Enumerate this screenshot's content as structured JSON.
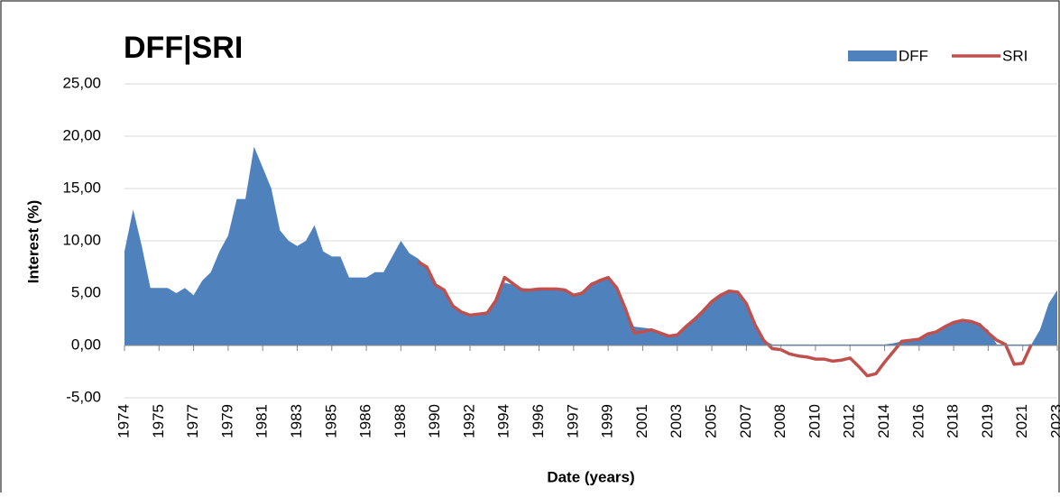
{
  "chart_data": {
    "type": "area-line",
    "title": "DFF|SRI",
    "x_label": "Date (years)",
    "y_label": "Interest (%)",
    "categories": [
      "1974",
      null,
      null,
      null,
      "1975",
      null,
      null,
      null,
      "1977",
      null,
      null,
      null,
      "1979",
      null,
      null,
      null,
      "1981",
      null,
      null,
      null,
      "1983",
      null,
      null,
      null,
      "1985",
      null,
      null,
      null,
      "1986",
      null,
      null,
      null,
      "1988",
      null,
      null,
      null,
      "1990",
      null,
      null,
      null,
      "1992",
      null,
      null,
      null,
      "1994",
      null,
      null,
      null,
      "1996",
      null,
      null,
      null,
      "1997",
      null,
      null,
      null,
      "1999",
      null,
      null,
      null,
      "2001",
      null,
      null,
      null,
      "2003",
      null,
      null,
      null,
      "2005",
      null,
      null,
      null,
      "2007",
      null,
      null,
      null,
      "2008",
      null,
      null,
      null,
      "2010",
      null,
      null,
      null,
      "2012",
      null,
      null,
      null,
      "2014",
      null,
      null,
      null,
      "2016",
      null,
      null,
      null,
      "2018",
      null,
      null,
      null,
      "2019",
      null,
      null,
      null,
      "2021",
      null,
      null,
      null,
      "2023"
    ],
    "series": [
      {
        "name": "DFF",
        "kind": "area",
        "color": "#4f81bd",
        "values": [
          9,
          13,
          9.5,
          5.5,
          5.5,
          5.5,
          5,
          5.5,
          4.8,
          6.2,
          7,
          9,
          10.5,
          14,
          14,
          19,
          17,
          15,
          11,
          10,
          9.5,
          10,
          11.5,
          9,
          8.5,
          8.5,
          6.5,
          6.5,
          6.5,
          7,
          7,
          8.5,
          10,
          8.8,
          8.3,
          7.5,
          6,
          5.2,
          4,
          3.2,
          3,
          3.1,
          3.2,
          4.5,
          6,
          5.8,
          5.5,
          5.4,
          5.5,
          5.5,
          5.5,
          5.3,
          4.8,
          5.2,
          6,
          6.3,
          6.5,
          5.5,
          3.5,
          1.8,
          1.7,
          1.6,
          1.2,
          1,
          1.1,
          1.8,
          2.5,
          3.3,
          4.2,
          4.8,
          5.2,
          5.2,
          4,
          2,
          0.5,
          0.1,
          0.1,
          0.1,
          0.1,
          0.1,
          0.1,
          0.1,
          0.1,
          0.1,
          0.1,
          0.1,
          0.1,
          0.1,
          0.1,
          0.2,
          0.4,
          0.4,
          0.7,
          1.1,
          1.4,
          1.8,
          2.2,
          2.4,
          2.3,
          2,
          1.5,
          0.1,
          0.1,
          0.1,
          0.1,
          0.1,
          1.5,
          4,
          5.3
        ]
      },
      {
        "name": "SRI",
        "kind": "line",
        "color": "#c0504d",
        "values": [
          null,
          null,
          null,
          null,
          null,
          null,
          null,
          null,
          null,
          null,
          null,
          null,
          null,
          null,
          null,
          null,
          null,
          null,
          null,
          null,
          null,
          null,
          null,
          null,
          null,
          null,
          null,
          null,
          null,
          null,
          null,
          null,
          null,
          null,
          8,
          7.5,
          5.8,
          5.3,
          3.8,
          3.2,
          2.9,
          3,
          3.1,
          4.3,
          6.5,
          5.9,
          5.3,
          5.3,
          5.4,
          5.4,
          5.4,
          5.3,
          4.8,
          5,
          5.8,
          6.2,
          6.5,
          5.5,
          3.5,
          1.2,
          1.3,
          1.5,
          1.2,
          0.9,
          1,
          1.8,
          2.5,
          3.3,
          4.2,
          4.8,
          5.2,
          5.1,
          4,
          2,
          0.5,
          -0.3,
          -0.4,
          -0.8,
          -1,
          -1.1,
          -1.3,
          -1.3,
          -1.5,
          -1.4,
          -1.2,
          -2,
          -2.9,
          -2.7,
          -1.6,
          -0.6,
          0.4,
          0.5,
          0.6,
          1.1,
          1.3,
          1.8,
          2.2,
          2.4,
          2.3,
          2,
          1.2,
          0.5,
          0.1,
          -1.8,
          -1.7,
          0.1,
          null,
          null,
          null
        ]
      }
    ],
    "ylim": [
      -5,
      25
    ],
    "yticks": [
      {
        "value": -5,
        "label": "-5,00"
      },
      {
        "value": 0,
        "label": "0,00"
      },
      {
        "value": 5,
        "label": "5,00"
      },
      {
        "value": 10,
        "label": "10,00"
      },
      {
        "value": 15,
        "label": "15,00"
      },
      {
        "value": 20,
        "label": "20,00"
      },
      {
        "value": 25,
        "label": "25,00"
      }
    ],
    "grid": true,
    "legend": "top-right"
  }
}
